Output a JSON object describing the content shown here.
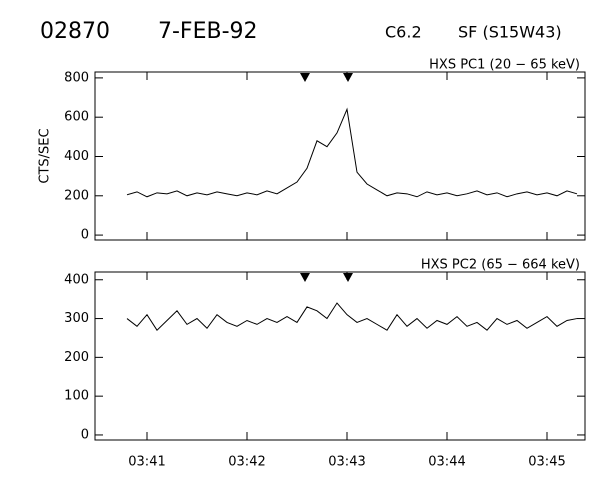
{
  "header": {
    "id": "02870",
    "date": "7-FEB-92",
    "class": "C6.2",
    "location": "SF (S15W43)"
  },
  "chart_data": [
    {
      "type": "line",
      "title": "HXS PC1 (20 − 65 keV)",
      "ylabel": "CTS/SEC",
      "x": [
        40.8,
        40.9,
        41.0,
        41.1,
        41.2,
        41.3,
        41.4,
        41.5,
        41.6,
        41.7,
        41.8,
        41.9,
        42.0,
        42.1,
        42.2,
        42.3,
        42.4,
        42.5,
        42.6,
        42.7,
        42.8,
        42.9,
        43.0,
        43.1,
        43.2,
        43.3,
        43.4,
        43.5,
        43.6,
        43.7,
        43.8,
        43.9,
        44.0,
        44.1,
        44.2,
        44.3,
        44.4,
        44.5,
        44.6,
        44.7,
        44.8,
        44.9,
        45.0,
        45.1,
        45.2,
        45.3
      ],
      "series": [
        {
          "color": "#000000",
          "values": [
            205,
            220,
            195,
            215,
            210,
            225,
            200,
            215,
            205,
            220,
            210,
            200,
            215,
            205,
            225,
            210,
            240,
            270,
            340,
            480,
            450,
            520,
            640,
            320,
            260,
            230,
            200,
            215,
            210,
            195,
            220,
            205,
            215,
            200,
            210,
            225,
            205,
            215,
            195,
            210,
            220,
            205,
            215,
            200,
            225,
            210
          ]
        }
      ],
      "xlim": [
        40.48,
        45.38
      ],
      "xticks": [
        41,
        42,
        43,
        44,
        45
      ],
      "ylim": [
        -25,
        830
      ],
      "yticks": [
        0,
        200,
        400,
        600,
        800
      ],
      "markers": [
        42.58,
        43.01
      ]
    },
    {
      "type": "line",
      "title": "HXS PC2 (65 − 664 keV)",
      "x": [
        40.8,
        40.9,
        41.0,
        41.1,
        41.2,
        41.3,
        41.4,
        41.5,
        41.6,
        41.7,
        41.8,
        41.9,
        42.0,
        42.1,
        42.2,
        42.3,
        42.4,
        42.5,
        42.6,
        42.7,
        42.8,
        42.9,
        43.0,
        43.1,
        43.2,
        43.3,
        43.4,
        43.5,
        43.6,
        43.7,
        43.8,
        43.9,
        44.0,
        44.1,
        44.2,
        44.3,
        44.4,
        44.5,
        44.6,
        44.7,
        44.8,
        44.9,
        45.0,
        45.1,
        45.2,
        45.3
      ],
      "series": [
        {
          "color": "#000000",
          "values": [
            300,
            280,
            310,
            270,
            295,
            320,
            285,
            300,
            275,
            310,
            290,
            280,
            295,
            285,
            300,
            290,
            305,
            290,
            330,
            320,
            300,
            340,
            310,
            290,
            300,
            285,
            270,
            310,
            280,
            300,
            275,
            295,
            285,
            305,
            280,
            290,
            270,
            300,
            285,
            295,
            275,
            290,
            305,
            280,
            295,
            300
          ]
        }
      ],
      "xlim": [
        40.48,
        45.38
      ],
      "xticks": [
        {
          "value": 41,
          "label": "03:41"
        },
        {
          "value": 42,
          "label": "03:42"
        },
        {
          "value": 43,
          "label": "03:43"
        },
        {
          "value": 44,
          "label": "03:44"
        },
        {
          "value": 45,
          "label": "03:45"
        }
      ],
      "ylim": [
        -13,
        420
      ],
      "yticks": [
        0,
        100,
        200,
        300,
        400
      ],
      "markers": [
        42.58,
        43.01
      ]
    }
  ]
}
